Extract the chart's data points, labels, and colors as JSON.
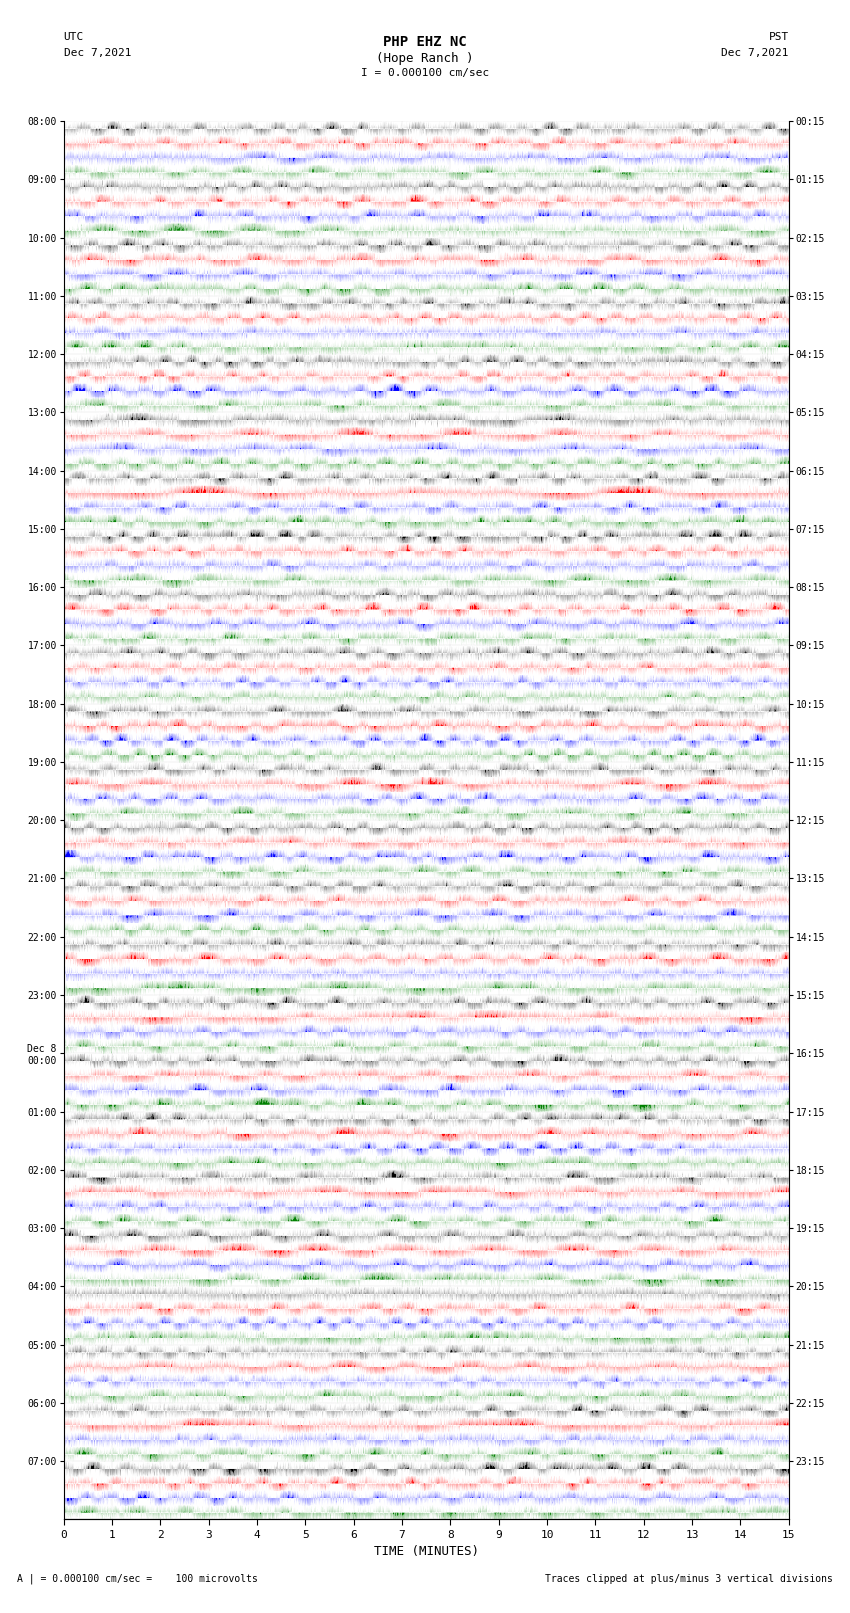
{
  "title_line1": "PHP EHZ NC",
  "title_line2": "(Hope Ranch )",
  "scale_label": "I = 0.000100 cm/sec",
  "footer_left": "A | = 0.000100 cm/sec =    100 microvolts",
  "footer_right": "Traces clipped at plus/minus 3 vertical divisions",
  "xlabel": "TIME (MINUTES)",
  "left_times_utc": [
    "08:00",
    "09:00",
    "10:00",
    "11:00",
    "12:00",
    "13:00",
    "14:00",
    "15:00",
    "16:00",
    "17:00",
    "18:00",
    "19:00",
    "20:00",
    "21:00",
    "22:00",
    "23:00",
    "Dec 8\n00:00",
    "01:00",
    "02:00",
    "03:00",
    "04:00",
    "05:00",
    "06:00",
    "07:00"
  ],
  "right_times_pst": [
    "00:15",
    "01:15",
    "02:15",
    "03:15",
    "04:15",
    "05:15",
    "06:15",
    "07:15",
    "08:15",
    "09:15",
    "10:15",
    "11:15",
    "12:15",
    "13:15",
    "14:15",
    "15:15",
    "16:15",
    "17:15",
    "18:15",
    "19:15",
    "20:15",
    "21:15",
    "22:15",
    "23:15"
  ],
  "n_rows": 24,
  "traces_per_row": 4,
  "row_colors": [
    "black",
    "red",
    "blue",
    "green"
  ],
  "minutes": 15,
  "fig_width": 8.5,
  "fig_height": 16.13,
  "bg_color": "white",
  "noise_amplitude": 1.8,
  "signal_clip": 3.0,
  "n_samples": 9000,
  "seed": 42,
  "lw": 0.5
}
